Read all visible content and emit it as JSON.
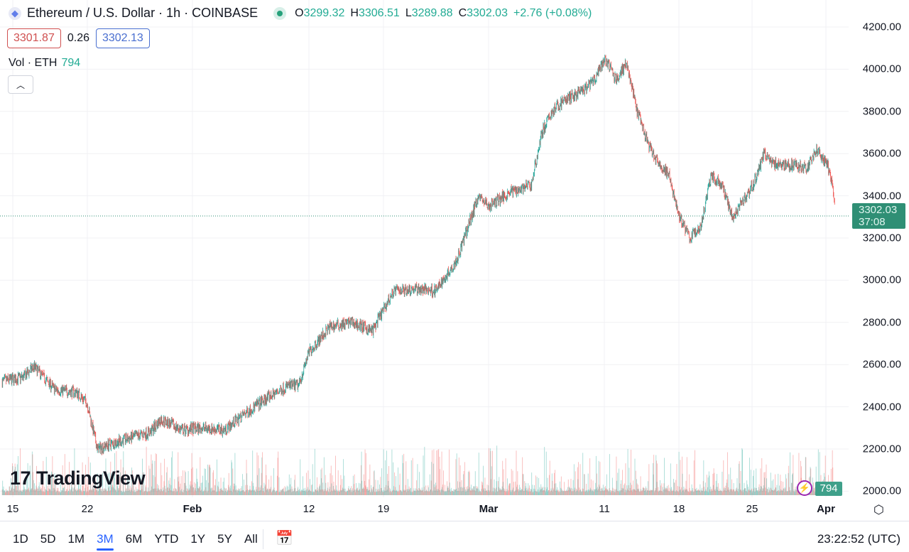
{
  "header": {
    "title": "Ethereum / U.S. Dollar · 1h · COINBASE",
    "o_label": "O",
    "o": "3299.32",
    "h_label": "H",
    "h": "3306.51",
    "l_label": "L",
    "l": "3289.88",
    "c_label": "C",
    "c": "3302.03",
    "change": "+2.76 (+0.08%)"
  },
  "trade": {
    "sell": "3301.87",
    "spread": "0.26",
    "buy": "3302.13"
  },
  "volume": {
    "label": "Vol · ETH",
    "value": "794"
  },
  "price_axis": [
    "4200.00",
    "4000.00",
    "3800.00",
    "3600.00",
    "3400.00",
    "3200.00",
    "3000.00",
    "2800.00",
    "2600.00",
    "2400.00",
    "2200.00",
    "2000.00"
  ],
  "last_price": {
    "price": "3302.03",
    "countdown": "37:08"
  },
  "dates": [
    {
      "t": "15",
      "b": false
    },
    {
      "t": "22",
      "b": false
    },
    {
      "t": "Feb",
      "b": true
    },
    {
      "t": "12",
      "b": false
    },
    {
      "t": "19",
      "b": false
    },
    {
      "t": "Mar",
      "b": true
    },
    {
      "t": "11",
      "b": false
    },
    {
      "t": "18",
      "b": false
    },
    {
      "t": "25",
      "b": false
    },
    {
      "t": "Apr",
      "b": true
    }
  ],
  "logo": "TradingView",
  "ranges": [
    "1D",
    "5D",
    "1M",
    "3M",
    "6M",
    "YTD",
    "1Y",
    "5Y",
    "All"
  ],
  "active_range": "3M",
  "clock": "23:22:52 (UTC)",
  "colors": {
    "up": "#26a69a",
    "down": "#ef5350",
    "accent": "#2962ff"
  },
  "chart_data": {
    "type": "candlestick",
    "symbol": "ETH/USD",
    "interval": "1h",
    "ylim": [
      2000,
      4200
    ],
    "anchors_day_price": [
      [
        14,
        2520
      ],
      [
        16,
        2540
      ],
      [
        17,
        2590
      ],
      [
        19,
        2480
      ],
      [
        21,
        2470
      ],
      [
        22,
        2420
      ],
      [
        23,
        2200
      ],
      [
        24,
        2220
      ],
      [
        26,
        2250
      ],
      [
        28,
        2280
      ],
      [
        29,
        2340
      ],
      [
        31,
        2290
      ],
      [
        33,
        2300
      ],
      [
        35,
        2290
      ],
      [
        37,
        2370
      ],
      [
        39,
        2440
      ],
      [
        41,
        2500
      ],
      [
        42,
        2500
      ],
      [
        43,
        2660
      ],
      [
        45,
        2780
      ],
      [
        47,
        2800
      ],
      [
        49,
        2760
      ],
      [
        51,
        2950
      ],
      [
        53,
        2960
      ],
      [
        55,
        2950
      ],
      [
        57,
        3100
      ],
      [
        58,
        3250
      ],
      [
        59,
        3400
      ],
      [
        60,
        3350
      ],
      [
        62,
        3420
      ],
      [
        64,
        3450
      ],
      [
        65,
        3700
      ],
      [
        66,
        3800
      ],
      [
        67,
        3850
      ],
      [
        69,
        3900
      ],
      [
        70,
        3950
      ],
      [
        71,
        4050
      ],
      [
        72,
        3950
      ],
      [
        73,
        4030
      ],
      [
        74,
        3800
      ],
      [
        75,
        3650
      ],
      [
        76,
        3550
      ],
      [
        77,
        3500
      ],
      [
        78,
        3300
      ],
      [
        79,
        3200
      ],
      [
        80,
        3250
      ],
      [
        81,
        3500
      ],
      [
        82,
        3450
      ],
      [
        83,
        3300
      ],
      [
        84,
        3380
      ],
      [
        85,
        3450
      ],
      [
        86,
        3600
      ],
      [
        87,
        3550
      ],
      [
        88,
        3550
      ],
      [
        90,
        3530
      ],
      [
        91,
        3620
      ],
      [
        92,
        3550
      ],
      [
        93,
        3302
      ]
    ]
  }
}
